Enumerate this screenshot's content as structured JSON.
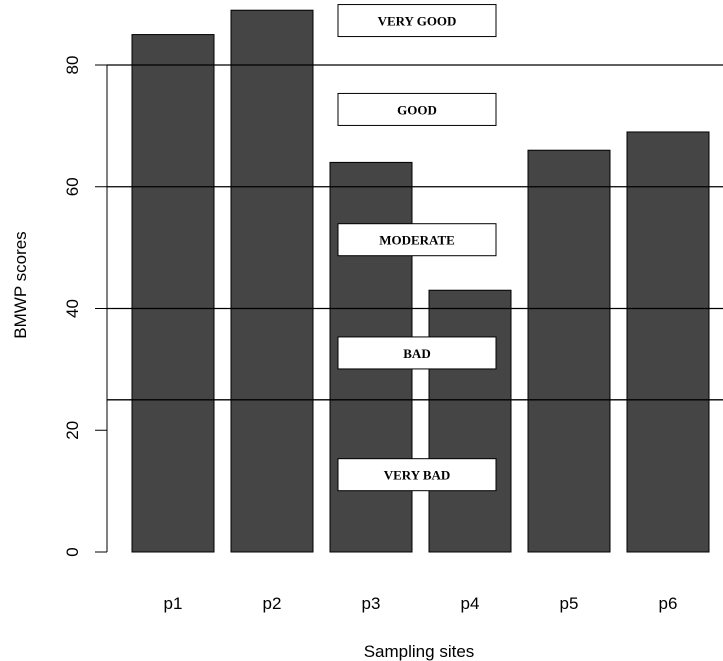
{
  "chart_data": {
    "type": "bar",
    "categories": [
      "p1",
      "p2",
      "p3",
      "p4",
      "p5",
      "p6"
    ],
    "values": [
      85,
      89,
      64,
      43,
      66,
      69
    ],
    "xlabel": "Sampling sites",
    "ylabel": "BMWP scores",
    "ylim": [
      0,
      89
    ],
    "yticks": [
      0,
      20,
      40,
      60,
      80
    ],
    "bar_color": "#454545",
    "threshold_lines": [
      25,
      40,
      60,
      80
    ],
    "class_labels": [
      {
        "text": "VERY GOOD",
        "y": 87.3
      },
      {
        "text": "GOOD",
        "y": 72.7
      },
      {
        "text": "MODERATE",
        "y": 51.3
      },
      {
        "text": "BAD",
        "y": 32.7
      },
      {
        "text": "VERY BAD",
        "y": 12.7
      }
    ]
  }
}
